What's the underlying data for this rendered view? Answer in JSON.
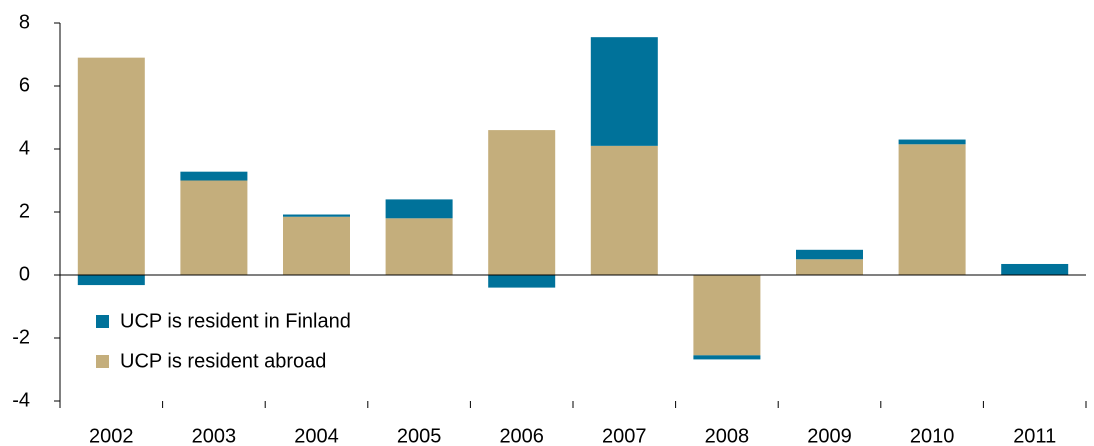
{
  "chart_data": {
    "type": "stacked_bar",
    "categories": [
      "2002",
      "2003",
      "2004",
      "2005",
      "2006",
      "2007",
      "2008",
      "2009",
      "2010",
      "2011"
    ],
    "series": [
      {
        "name": "UCP is resident abroad",
        "color": "#c4ae7c",
        "values": [
          6.9,
          3.0,
          1.85,
          1.8,
          4.6,
          4.1,
          -2.55,
          0.5,
          4.15,
          0
        ]
      },
      {
        "name": "UCP is resident in Finland",
        "color": "#00729a",
        "values": [
          -0.32,
          0.28,
          0.07,
          0.6,
          -0.4,
          3.45,
          -0.13,
          0.3,
          0.15,
          0.35
        ]
      }
    ],
    "ylim": [
      -4,
      8
    ],
    "yticks": [
      -4,
      -2,
      0,
      2,
      4,
      6,
      8
    ],
    "legend": "lower left"
  }
}
